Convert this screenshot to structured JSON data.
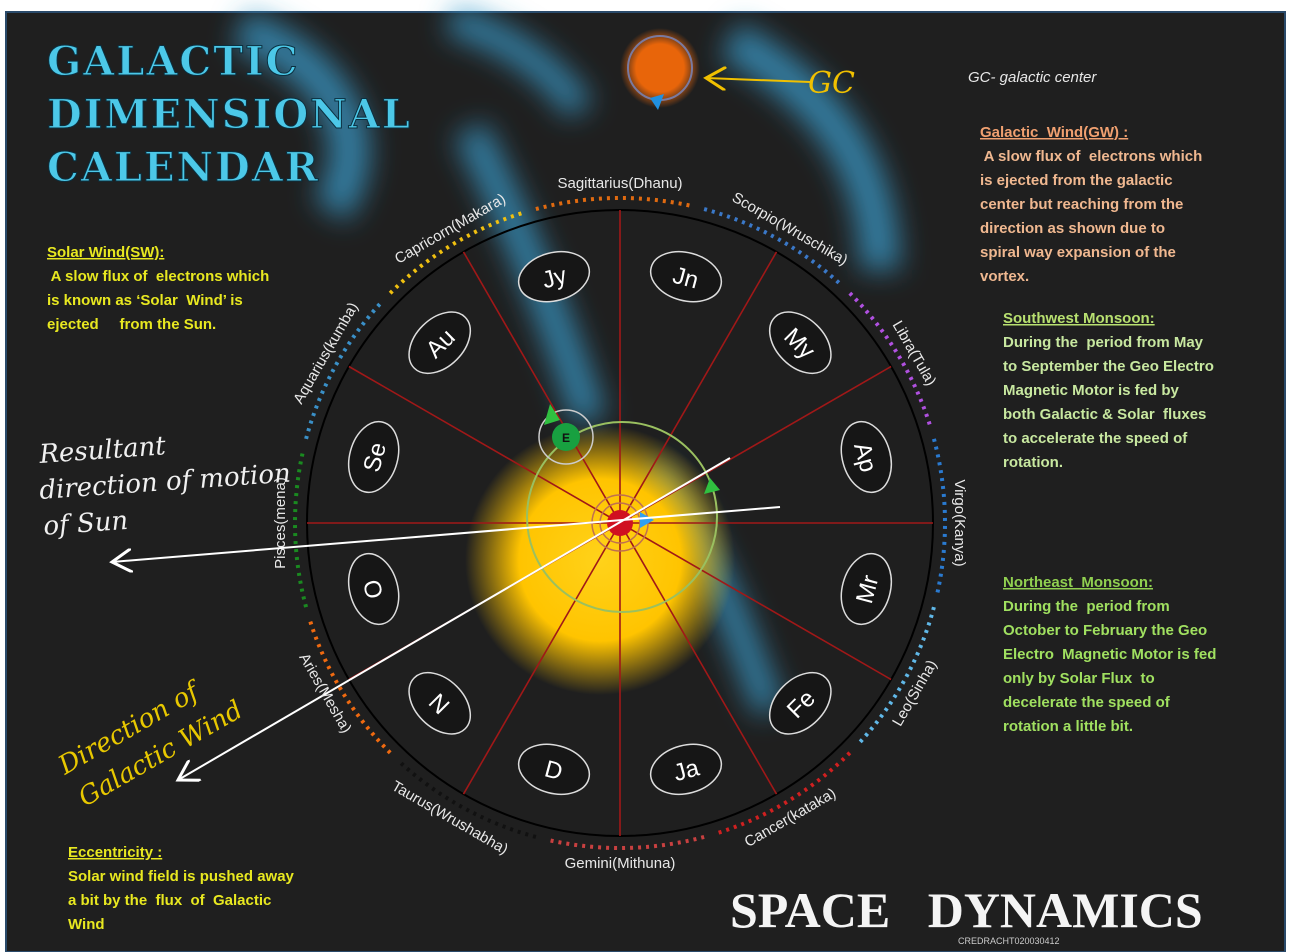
{
  "title": [
    "GALACTIC",
    "DIMENSIONAL",
    "CALENDAR"
  ],
  "gc_label": "GC",
  "gc_note": "GC- galactic center",
  "notes": [
    {
      "heading": "Galactic  Wind(GW) :",
      "lines": [
        " A slow flux of  electrons which",
        "is ejected from the galactic",
        "center but reaching from the",
        "direction as shown due to",
        "spiral way expansion of the",
        "vortex."
      ]
    },
    {
      "heading": "Southwest Monsoon:",
      "lines": [
        "During the  period from May",
        "to September the Geo Electro",
        "Magnetic Motor is fed by",
        "both Galactic & Solar  fluxes",
        "to accelerate the speed of",
        "rotation."
      ]
    },
    {
      "heading": "Northeast  Monsoon:",
      "lines": [
        "During the  period from",
        "October to February the Geo",
        "Electro  Magnetic Motor is fed",
        "only by Solar Flux  to",
        "decelerate the speed of",
        "rotation a little bit."
      ]
    },
    {
      "heading": "Solar Wind(SW):",
      "lines": [
        " A slow flux of  electrons which",
        "is known as ‘Solar  Wind’ is",
        "ejected     from the Sun."
      ]
    },
    {
      "heading": "Eccentricity :",
      "lines": [
        "Solar wind field is pushed away",
        "a bit by the  flux  of  Galactic",
        "Wind"
      ]
    }
  ],
  "months": [
    "Jn",
    "My",
    "Ap",
    "Mr",
    "Fe",
    "Ja",
    "D",
    "N",
    "O",
    "Se",
    "Au",
    "Jy"
  ],
  "zodiac": [
    "Sagittarius(Dhanu)",
    "Scorpio(Wruschika)",
    "Libra(Tula)",
    "Virgo(Kanya)",
    "Leo(Sinha)",
    "Cancer(kataka)",
    "Gemini(Mithuna)",
    "Taurus(Wrushabha)",
    "Aries(Mesha)",
    "Pisces(mena)",
    "Aquarius(kumba)",
    "Capricorn(Makara)"
  ],
  "earth": "E",
  "resultant": [
    "Resultant",
    "direction of motion",
    "of Sun"
  ],
  "galactic_wind_direction": [
    "Direction of",
    "Galactic Wind"
  ],
  "footer": {
    "title": "SPACE   DYNAMICS",
    "code": "CREDRACHT020030412"
  }
}
